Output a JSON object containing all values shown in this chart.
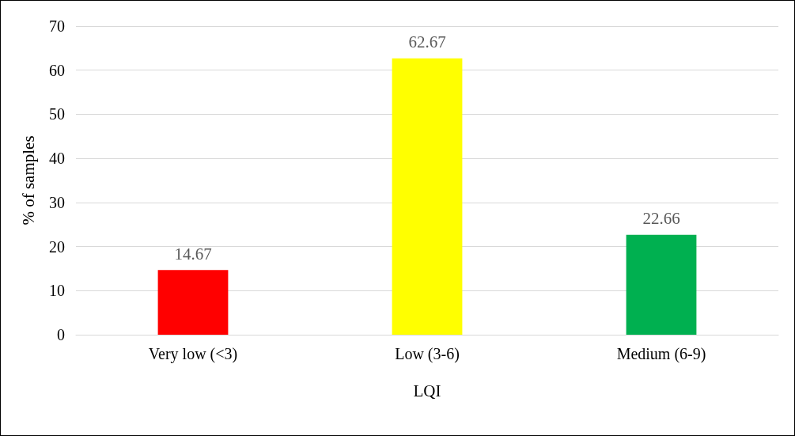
{
  "chart_data": {
    "type": "bar",
    "xlabel": "LQI",
    "ylabel": "% of samples",
    "categories": [
      "Very low (<3)",
      "Low (3-6)",
      "Medium (6-9)"
    ],
    "values": [
      14.67,
      62.67,
      22.66
    ],
    "colors": [
      "#ff0000",
      "#ffff00",
      "#00b050"
    ],
    "ylim": [
      0,
      70
    ],
    "yticks": [
      0,
      10,
      20,
      30,
      40,
      50,
      60,
      70
    ],
    "grid": "y",
    "data_labels": true
  }
}
